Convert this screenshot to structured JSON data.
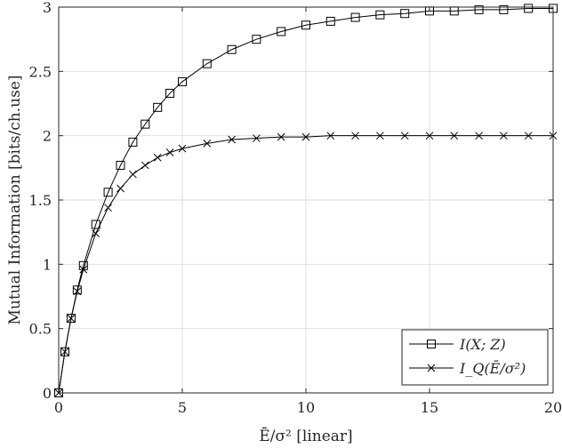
{
  "chart_data": {
    "type": "line",
    "xlabel": "Ē/σ² [linear]",
    "ylabel": "Mutual Information [bits/ch.use]",
    "xlim": [
      0,
      20
    ],
    "ylim": [
      0,
      3
    ],
    "grid": true,
    "legend_position": "bottom-right",
    "x_ticks": [
      "0",
      "5",
      "10",
      "15",
      "20"
    ],
    "y_ticks": [
      "0",
      "0.5",
      "1",
      "1.5",
      "2",
      "2.5",
      "3"
    ],
    "series": [
      {
        "name": "I(X; Z)",
        "marker": "square",
        "x": [
          0,
          0.25,
          0.5,
          0.75,
          1,
          1.5,
          2,
          2.5,
          3,
          3.5,
          4,
          4.5,
          5,
          6,
          7,
          8,
          9,
          10,
          11,
          12,
          13,
          14,
          15,
          16,
          17,
          18,
          19,
          20
        ],
        "y": [
          0,
          0.32,
          0.58,
          0.8,
          0.99,
          1.31,
          1.56,
          1.77,
          1.95,
          2.09,
          2.22,
          2.33,
          2.42,
          2.56,
          2.67,
          2.75,
          2.81,
          2.86,
          2.89,
          2.92,
          2.94,
          2.95,
          2.97,
          2.97,
          2.98,
          2.98,
          2.99,
          2.99
        ]
      },
      {
        "name": "I_Q(Ē/σ²)",
        "marker": "x",
        "x": [
          0,
          0.25,
          0.5,
          0.75,
          1,
          1.5,
          2,
          2.5,
          3,
          3.5,
          4,
          4.5,
          5,
          6,
          7,
          8,
          9,
          10,
          11,
          12,
          13,
          14,
          15,
          16,
          17,
          18,
          19,
          20
        ],
        "y": [
          0,
          0.32,
          0.58,
          0.79,
          0.96,
          1.24,
          1.44,
          1.59,
          1.7,
          1.77,
          1.83,
          1.87,
          1.9,
          1.94,
          1.97,
          1.98,
          1.99,
          1.99,
          2.0,
          2.0,
          2.0,
          2.0,
          2.0,
          2.0,
          2.0,
          2.0,
          2.0,
          2.0
        ]
      }
    ]
  }
}
